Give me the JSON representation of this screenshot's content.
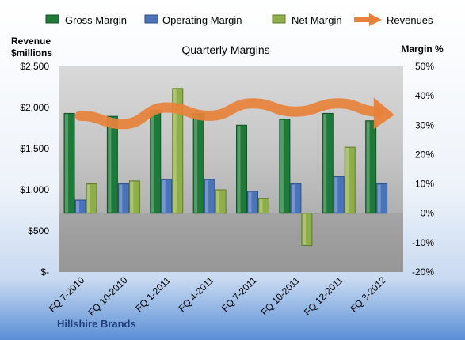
{
  "chart_data": {
    "type": "bar",
    "title": "Quarterly Margins",
    "left_axis_label_line1": "Revenue",
    "left_axis_label_line2": "$millions",
    "right_axis_label": "Margin %",
    "brand": "Hillshire Brands",
    "categories": [
      "FQ 7-2010",
      "FQ 10-2010",
      "FQ 1-2011",
      "FQ 4-2011",
      "FQ 7-2011",
      "FQ 10-2011",
      "FQ 12-2011",
      "FQ 3-2012"
    ],
    "left_ylim": [
      0,
      2500
    ],
    "right_ylim": [
      -20,
      50
    ],
    "left_ticks": [
      "$-",
      "$500",
      "$1,000",
      "$1,500",
      "$2,000",
      "$2,500"
    ],
    "right_ticks": [
      "-20%",
      "-10%",
      "0%",
      "10%",
      "20%",
      "30%",
      "40%",
      "50%"
    ],
    "margin_series": [
      {
        "name": "Gross Margin",
        "color": "#1f7a3a",
        "values": [
          34,
          33,
          35,
          34,
          30,
          32,
          34,
          31.5
        ]
      },
      {
        "name": "Operating Margin",
        "color": "#4a73b8",
        "values": [
          4.5,
          10,
          11.5,
          11.5,
          7.5,
          10,
          12.5,
          10
        ]
      },
      {
        "name": "Net Margin",
        "color": "#8fae4a",
        "values": [
          10,
          11,
          42.5,
          8,
          5,
          -11,
          22.5,
          null
        ]
      }
    ],
    "revenue_series": {
      "name": "Revenues",
      "color": "#e8823a",
      "values": [
        1900,
        1800,
        2000,
        1900,
        2050,
        1950,
        2050,
        1950
      ]
    },
    "legend_position": "top",
    "grid": false
  }
}
